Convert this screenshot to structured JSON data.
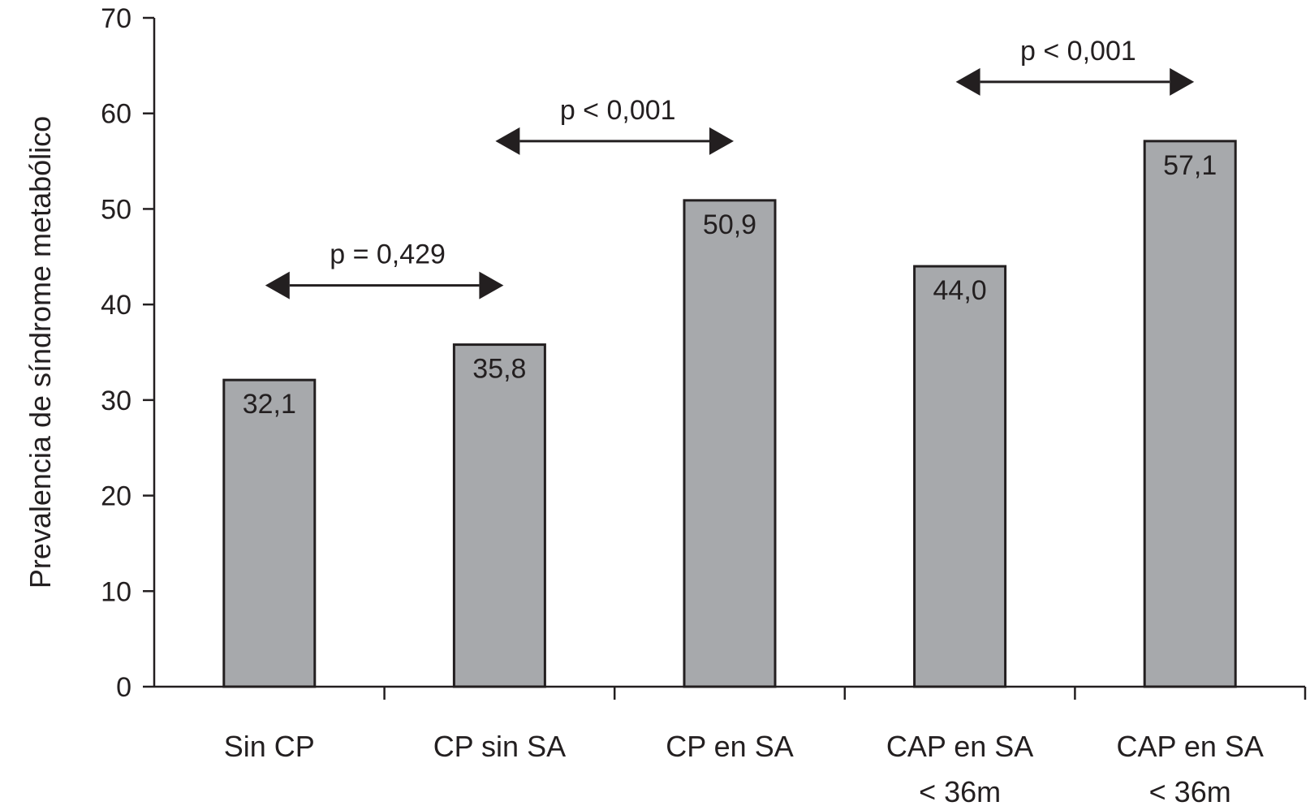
{
  "chart_data": {
    "type": "bar",
    "title": "",
    "xlabel": "",
    "ylabel": "Prevalencia de síndrome metabólico",
    "ylim": [
      0,
      70
    ],
    "yticks": [
      "0",
      "10",
      "20",
      "30",
      "40",
      "50",
      "60",
      "70"
    ],
    "categories": [
      [
        "Sin CP"
      ],
      [
        "CP sin SA"
      ],
      [
        "CP en SA"
      ],
      [
        "CAP en SA",
        "< 36m"
      ],
      [
        "CAP en SA",
        "< 36m"
      ]
    ],
    "values": [
      32.1,
      35.8,
      50.9,
      44.0,
      57.1
    ],
    "value_labels": [
      "32,1",
      "35,8",
      "50,9",
      "44,0",
      "57,1"
    ],
    "comparisons": [
      {
        "from": 0,
        "to": 1,
        "label": "p = 0,429"
      },
      {
        "from": 1,
        "to": 2,
        "label": "p < 0,001"
      },
      {
        "from": 3,
        "to": 4,
        "label": "p < 0,001"
      }
    ],
    "colors": {
      "bar": "#a7a9ac",
      "outline": "#231f20"
    },
    "grid": false,
    "legend": "none"
  }
}
